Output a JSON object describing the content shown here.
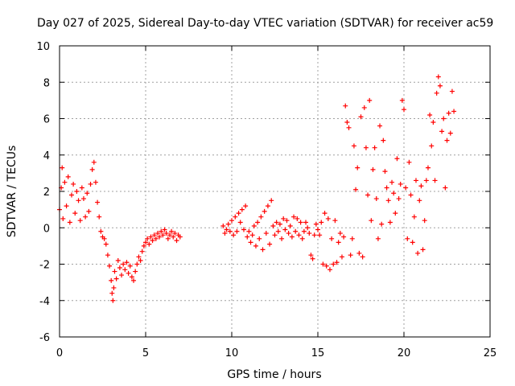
{
  "chart_data": {
    "type": "scatter",
    "title": "Day 027 of 2025, Sidereal Day-to-day VTEC variation (SDTVAR) for receiver ac59",
    "xlabel": "GPS time / hours",
    "ylabel": "SDTVAR / TECUs",
    "xlim": [
      0,
      25
    ],
    "ylim": [
      -6,
      10
    ],
    "xticks": [
      0,
      5,
      10,
      15,
      20,
      25
    ],
    "yticks": [
      -6,
      -4,
      -2,
      0,
      2,
      4,
      6,
      8,
      10
    ],
    "grid": true,
    "marker": "+",
    "color": "#ff0000",
    "series": [
      {
        "name": "SDTVAR",
        "points": [
          [
            0.0,
            1.0
          ],
          [
            0.1,
            2.2
          ],
          [
            0.15,
            3.3
          ],
          [
            0.2,
            0.5
          ],
          [
            0.3,
            2.5
          ],
          [
            0.4,
            1.2
          ],
          [
            0.5,
            2.8
          ],
          [
            0.6,
            0.3
          ],
          [
            0.7,
            1.8
          ],
          [
            0.8,
            2.4
          ],
          [
            0.9,
            0.8
          ],
          [
            1.0,
            2.0
          ],
          [
            1.1,
            1.5
          ],
          [
            1.2,
            0.4
          ],
          [
            1.3,
            2.2
          ],
          [
            1.4,
            1.6
          ],
          [
            1.5,
            0.6
          ],
          [
            1.6,
            1.9
          ],
          [
            1.7,
            0.9
          ],
          [
            1.8,
            2.4
          ],
          [
            1.9,
            3.2
          ],
          [
            2.0,
            3.6
          ],
          [
            2.1,
            2.5
          ],
          [
            2.2,
            1.4
          ],
          [
            2.3,
            0.6
          ],
          [
            2.4,
            -0.2
          ],
          [
            2.5,
            -0.5
          ],
          [
            2.6,
            -0.6
          ],
          [
            2.7,
            -0.9
          ],
          [
            2.8,
            -1.5
          ],
          [
            2.9,
            -2.1
          ],
          [
            3.0,
            -2.9
          ],
          [
            3.05,
            -3.6
          ],
          [
            3.1,
            -4.0
          ],
          [
            3.15,
            -3.3
          ],
          [
            3.2,
            -2.4
          ],
          [
            3.3,
            -2.8
          ],
          [
            3.4,
            -1.8
          ],
          [
            3.5,
            -2.2
          ],
          [
            3.6,
            -2.6
          ],
          [
            3.7,
            -2.0
          ],
          [
            3.8,
            -2.3
          ],
          [
            3.9,
            -1.9
          ],
          [
            4.0,
            -2.5
          ],
          [
            4.1,
            -2.1
          ],
          [
            4.2,
            -2.7
          ],
          [
            4.3,
            -2.9
          ],
          [
            4.4,
            -2.4
          ],
          [
            4.5,
            -2.0
          ],
          [
            4.6,
            -1.6
          ],
          [
            4.7,
            -1.8
          ],
          [
            4.8,
            -1.3
          ],
          [
            4.9,
            -1.0
          ],
          [
            5.0,
            -0.8
          ],
          [
            5.1,
            -0.6
          ],
          [
            5.2,
            -0.9
          ],
          [
            5.3,
            -0.5
          ],
          [
            5.4,
            -0.7
          ],
          [
            5.5,
            -0.4
          ],
          [
            5.6,
            -0.6
          ],
          [
            5.7,
            -0.3
          ],
          [
            5.8,
            -0.5
          ],
          [
            5.9,
            -0.2
          ],
          [
            6.0,
            -0.4
          ],
          [
            6.1,
            -0.1
          ],
          [
            6.2,
            -0.3
          ],
          [
            6.3,
            -0.6
          ],
          [
            6.4,
            -0.4
          ],
          [
            6.5,
            -0.2
          ],
          [
            6.6,
            -0.5
          ],
          [
            6.7,
            -0.3
          ],
          [
            6.8,
            -0.7
          ],
          [
            6.9,
            -0.4
          ],
          [
            7.0,
            -0.5
          ],
          [
            9.5,
            0.1
          ],
          [
            9.6,
            -0.3
          ],
          [
            9.7,
            -0.1
          ],
          [
            9.8,
            0.2
          ],
          [
            9.9,
            -0.2
          ],
          [
            10.0,
            0.4
          ],
          [
            10.1,
            -0.4
          ],
          [
            10.2,
            0.6
          ],
          [
            10.3,
            -0.2
          ],
          [
            10.4,
            0.8
          ],
          [
            10.5,
            0.3
          ],
          [
            10.6,
            1.0
          ],
          [
            10.7,
            -0.1
          ],
          [
            10.8,
            1.2
          ],
          [
            10.9,
            -0.5
          ],
          [
            11.0,
            -0.2
          ],
          [
            11.1,
            -0.8
          ],
          [
            11.2,
            -0.4
          ],
          [
            11.3,
            0.1
          ],
          [
            11.4,
            -1.0
          ],
          [
            11.5,
            0.3
          ],
          [
            11.6,
            -0.6
          ],
          [
            11.7,
            0.6
          ],
          [
            11.8,
            -1.2
          ],
          [
            11.9,
            0.9
          ],
          [
            12.0,
            -0.3
          ],
          [
            12.1,
            1.2
          ],
          [
            12.2,
            -0.9
          ],
          [
            12.3,
            1.5
          ],
          [
            12.4,
            0.1
          ],
          [
            12.5,
            -0.4
          ],
          [
            12.6,
            0.3
          ],
          [
            12.7,
            -0.2
          ],
          [
            12.8,
            0.2
          ],
          [
            12.9,
            -0.6
          ],
          [
            13.0,
            0.5
          ],
          [
            13.1,
            -0.1
          ],
          [
            13.2,
            0.4
          ],
          [
            13.3,
            -0.3
          ],
          [
            13.4,
            0.1
          ],
          [
            13.5,
            -0.5
          ],
          [
            13.6,
            0.6
          ],
          [
            13.7,
            -0.2
          ],
          [
            13.8,
            0.5
          ],
          [
            13.9,
            -0.4
          ],
          [
            14.0,
            0.3
          ],
          [
            14.1,
            -0.6
          ],
          [
            14.2,
            -0.2
          ],
          [
            14.3,
            0.3
          ],
          [
            14.4,
            0.0
          ],
          [
            14.5,
            -0.3
          ],
          [
            14.6,
            -1.5
          ],
          [
            14.7,
            -1.7
          ],
          [
            14.8,
            -0.4
          ],
          [
            14.9,
            0.2
          ],
          [
            15.0,
            -0.1
          ],
          [
            15.1,
            -0.4
          ],
          [
            15.2,
            0.3
          ],
          [
            15.3,
            -2.0
          ],
          [
            15.4,
            0.8
          ],
          [
            15.5,
            -2.1
          ],
          [
            15.6,
            0.5
          ],
          [
            15.7,
            -2.3
          ],
          [
            15.8,
            -0.6
          ],
          [
            15.9,
            -2.0
          ],
          [
            16.0,
            0.4
          ],
          [
            16.1,
            -1.9
          ],
          [
            16.2,
            -0.8
          ],
          [
            16.3,
            -0.3
          ],
          [
            16.4,
            -1.6
          ],
          [
            16.5,
            -0.5
          ],
          [
            16.6,
            6.7
          ],
          [
            16.7,
            5.8
          ],
          [
            16.8,
            5.5
          ],
          [
            16.9,
            -1.5
          ],
          [
            17.0,
            -0.6
          ],
          [
            17.1,
            4.5
          ],
          [
            17.2,
            2.1
          ],
          [
            17.3,
            3.3
          ],
          [
            17.4,
            -1.4
          ],
          [
            17.5,
            6.1
          ],
          [
            17.6,
            -1.6
          ],
          [
            17.7,
            6.6
          ],
          [
            17.8,
            4.4
          ],
          [
            17.9,
            1.8
          ],
          [
            18.0,
            7.0
          ],
          [
            18.1,
            0.4
          ],
          [
            18.2,
            3.2
          ],
          [
            18.3,
            4.4
          ],
          [
            18.4,
            1.6
          ],
          [
            18.5,
            -0.6
          ],
          [
            18.6,
            5.6
          ],
          [
            18.7,
            0.2
          ],
          [
            18.8,
            4.8
          ],
          [
            18.9,
            3.1
          ],
          [
            19.0,
            2.2
          ],
          [
            19.1,
            1.5
          ],
          [
            19.2,
            0.3
          ],
          [
            19.3,
            2.5
          ],
          [
            19.4,
            1.9
          ],
          [
            19.5,
            0.8
          ],
          [
            19.6,
            3.8
          ],
          [
            19.7,
            1.6
          ],
          [
            19.8,
            2.4
          ],
          [
            19.9,
            7.0
          ],
          [
            20.0,
            6.5
          ],
          [
            20.1,
            2.2
          ],
          [
            20.2,
            -0.6
          ],
          [
            20.3,
            3.6
          ],
          [
            20.4,
            1.8
          ],
          [
            20.5,
            -0.8
          ],
          [
            20.6,
            0.6
          ],
          [
            20.7,
            2.6
          ],
          [
            20.8,
            -1.4
          ],
          [
            20.9,
            1.5
          ],
          [
            21.0,
            2.3
          ],
          [
            21.1,
            -1.2
          ],
          [
            21.2,
            0.4
          ],
          [
            21.3,
            2.6
          ],
          [
            21.4,
            3.3
          ],
          [
            21.5,
            6.2
          ],
          [
            21.6,
            4.5
          ],
          [
            21.7,
            5.8
          ],
          [
            21.8,
            2.6
          ],
          [
            21.9,
            7.4
          ],
          [
            22.0,
            8.3
          ],
          [
            22.1,
            7.8
          ],
          [
            22.2,
            5.3
          ],
          [
            22.3,
            6.0
          ],
          [
            22.4,
            2.2
          ],
          [
            22.5,
            4.8
          ],
          [
            22.6,
            6.3
          ],
          [
            22.7,
            5.2
          ],
          [
            22.8,
            7.5
          ],
          [
            22.9,
            6.4
          ]
        ]
      }
    ]
  }
}
